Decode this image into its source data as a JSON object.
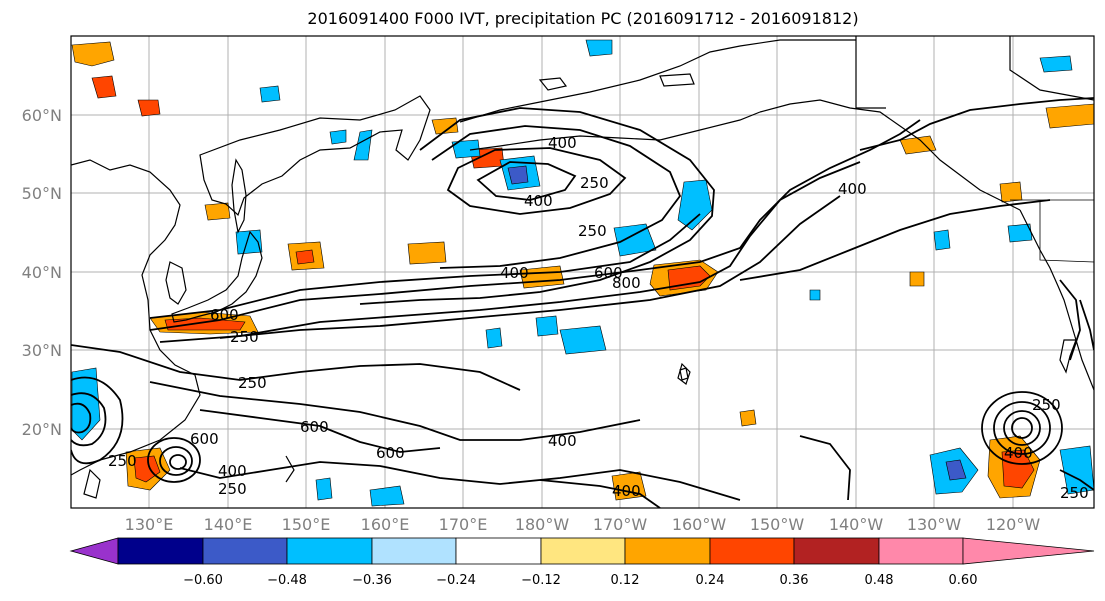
{
  "title": "2016091400 F000 IVT, precipitation PC (2016091712 - 2016091812)",
  "map": {
    "lat_labels": [
      "20°N",
      "30°N",
      "40°N",
      "50°N",
      "60°N"
    ],
    "lon_labels": [
      "130°E",
      "140°E",
      "150°E",
      "160°E",
      "170°E",
      "180°W",
      "170°W",
      "160°W",
      "150°W",
      "140°W",
      "130°W",
      "120°W"
    ],
    "contour_labels": [
      "400",
      "250",
      "400",
      "250",
      "400",
      "400",
      "600",
      "800",
      "600",
      "250",
      "250",
      "600",
      "600",
      "400",
      "400",
      "250",
      "600",
      "250",
      "400",
      "250",
      "400",
      "250"
    ]
  },
  "colorbar": {
    "ticks": [
      "−0.60",
      "−0.48",
      "−0.36",
      "−0.24",
      "−0.12",
      "0.12",
      "0.24",
      "0.36",
      "0.48",
      "0.60"
    ],
    "colors": [
      "#9932cc",
      "#00008b",
      "#3c5ac8",
      "#00bfff",
      "#b0e2ff",
      "#ffffff",
      "#ffe680",
      "#ffa500",
      "#ff4500",
      "#b22222",
      "#ff88aa"
    ]
  }
}
